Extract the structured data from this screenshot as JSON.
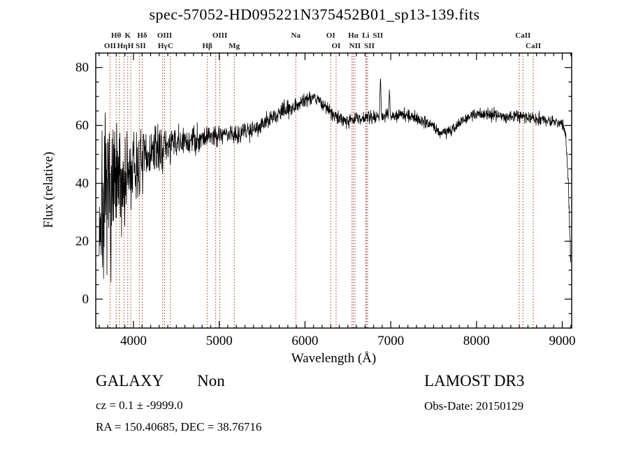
{
  "title": "spec-57052-HD095221N375452B01_sp13-139.fits",
  "annotations": {
    "class_label": "GALAXY",
    "subclass_label": "Non",
    "cz_line": "cz = 0.1 ± -9999.0",
    "radec_line": "RA = 150.40685, DEC =  38.76716",
    "survey": "LAMOST DR3",
    "obsdate_line": "Obs-Date: 20150129"
  },
  "chart_data": {
    "type": "line",
    "title": "spec-57052-HD095221N375452B01_sp13-139.fits",
    "xlabel": "Wavelength (Å)",
    "ylabel": "Flux (relative)",
    "xlim": [
      3560,
      9110
    ],
    "ylim": [
      -10,
      85
    ],
    "x_major_ticks": [
      4000,
      5000,
      6000,
      7000,
      8000,
      9000
    ],
    "x_minor_step": 100,
    "y_major_ticks": [
      0,
      20,
      40,
      60,
      80
    ],
    "y_minor_step": 5,
    "line_color": "#000000",
    "marker_color": "#9b3a26",
    "label_color": "#1a1a1a",
    "frame_color": "#000000",
    "spectrum": {
      "seed": 7,
      "sample_step": 3,
      "continuum": [
        [
          3600,
          28
        ],
        [
          3700,
          34
        ],
        [
          3800,
          38
        ],
        [
          3900,
          41
        ],
        [
          4000,
          44
        ],
        [
          4100,
          47
        ],
        [
          4200,
          50
        ],
        [
          4300,
          52
        ],
        [
          4400,
          53
        ],
        [
          4600,
          54
        ],
        [
          4800,
          56
        ],
        [
          5000,
          57
        ],
        [
          5200,
          57
        ],
        [
          5400,
          59
        ],
        [
          5600,
          62
        ],
        [
          5800,
          66
        ],
        [
          5900,
          67
        ],
        [
          6000,
          69
        ],
        [
          6100,
          70
        ],
        [
          6150,
          69
        ],
        [
          6250,
          66
        ],
        [
          6350,
          63
        ],
        [
          6450,
          62
        ],
        [
          6550,
          62
        ],
        [
          6650,
          62.5
        ],
        [
          6750,
          63
        ],
        [
          6850,
          63
        ],
        [
          6950,
          63.5
        ],
        [
          7050,
          63
        ],
        [
          7150,
          64
        ],
        [
          7250,
          63
        ],
        [
          7350,
          62
        ],
        [
          7450,
          60.5
        ],
        [
          7550,
          58.5
        ],
        [
          7600,
          57.5
        ],
        [
          7650,
          57.5
        ],
        [
          7750,
          59.5
        ],
        [
          7850,
          62
        ],
        [
          7950,
          63.5
        ],
        [
          8050,
          64
        ],
        [
          8150,
          64
        ],
        [
          8250,
          63.5
        ],
        [
          8350,
          63
        ],
        [
          8450,
          63.5
        ],
        [
          8550,
          63
        ],
        [
          8650,
          62.5
        ],
        [
          8750,
          62
        ],
        [
          8850,
          61.5
        ],
        [
          8950,
          61
        ],
        [
          9010,
          60
        ],
        [
          9040,
          57
        ],
        [
          9070,
          40
        ],
        [
          9100,
          12
        ]
      ],
      "noise_amplitude": [
        [
          3600,
          26
        ],
        [
          3700,
          24
        ],
        [
          3800,
          20
        ],
        [
          3900,
          16
        ],
        [
          4000,
          13
        ],
        [
          4100,
          10
        ],
        [
          4200,
          8
        ],
        [
          4400,
          6
        ],
        [
          4600,
          5
        ],
        [
          4800,
          4
        ],
        [
          5000,
          3.5
        ],
        [
          5400,
          3
        ],
        [
          5800,
          2.6
        ],
        [
          6200,
          2.2
        ],
        [
          6600,
          2
        ],
        [
          7000,
          2
        ],
        [
          7400,
          1.8
        ],
        [
          7800,
          1.8
        ],
        [
          8200,
          1.8
        ],
        [
          8600,
          1.9
        ],
        [
          9000,
          2.2
        ],
        [
          9100,
          3
        ]
      ],
      "emission_spikes": [
        {
          "wl": 6880,
          "amp": 13,
          "sigma": 6
        },
        {
          "wl": 6985,
          "amp": 8,
          "sigma": 5
        }
      ]
    },
    "markers": [
      {
        "wl": 3727,
        "label": "OII",
        "row": 2
      },
      {
        "wl": 3798,
        "label": "Hθ",
        "row": 1
      },
      {
        "wl": 3835,
        "label": "Hη",
        "row": 2
      },
      {
        "wl": 3889,
        "label": "",
        "row": 0
      },
      {
        "wl": 3933,
        "label": "K",
        "row": 1
      },
      {
        "wl": 3968,
        "label": "H",
        "row": 2
      },
      {
        "wl": 4068,
        "label": "SII",
        "row": 2
      },
      {
        "wl": 4102,
        "label": "Hδ",
        "row": 1
      },
      {
        "wl": 4340,
        "label": "Hγ",
        "row": 2
      },
      {
        "wl": 4363,
        "label": "OIII",
        "row": 1
      },
      {
        "wl": 4430,
        "label": "C",
        "row": 2
      },
      {
        "wl": 4861,
        "label": "Hβ",
        "row": 2
      },
      {
        "wl": 4959,
        "label": "",
        "row": 0
      },
      {
        "wl": 5007,
        "label": "OIII",
        "row": 1
      },
      {
        "wl": 5175,
        "label": "Mg",
        "row": 2
      },
      {
        "wl": 5893,
        "label": "Na",
        "row": 1
      },
      {
        "wl": 6300,
        "label": "OI",
        "row": 1
      },
      {
        "wl": 6363,
        "label": "OI",
        "row": 2
      },
      {
        "wl": 6548,
        "label": "",
        "row": 0
      },
      {
        "wl": 6563,
        "label": "Hα",
        "row": 1
      },
      {
        "wl": 6583,
        "label": "NII",
        "row": 2
      },
      {
        "wl": 6708,
        "label": "Li",
        "row": 1
      },
      {
        "wl": 6716,
        "label": "SII",
        "row": 1
      },
      {
        "wl": 6731,
        "label": "SII",
        "row": 2
      },
      {
        "wl": 8498,
        "label": "",
        "row": 0
      },
      {
        "wl": 8542,
        "label": "CaII",
        "row": 1
      },
      {
        "wl": 8662,
        "label": "CaII",
        "row": 2
      }
    ]
  }
}
